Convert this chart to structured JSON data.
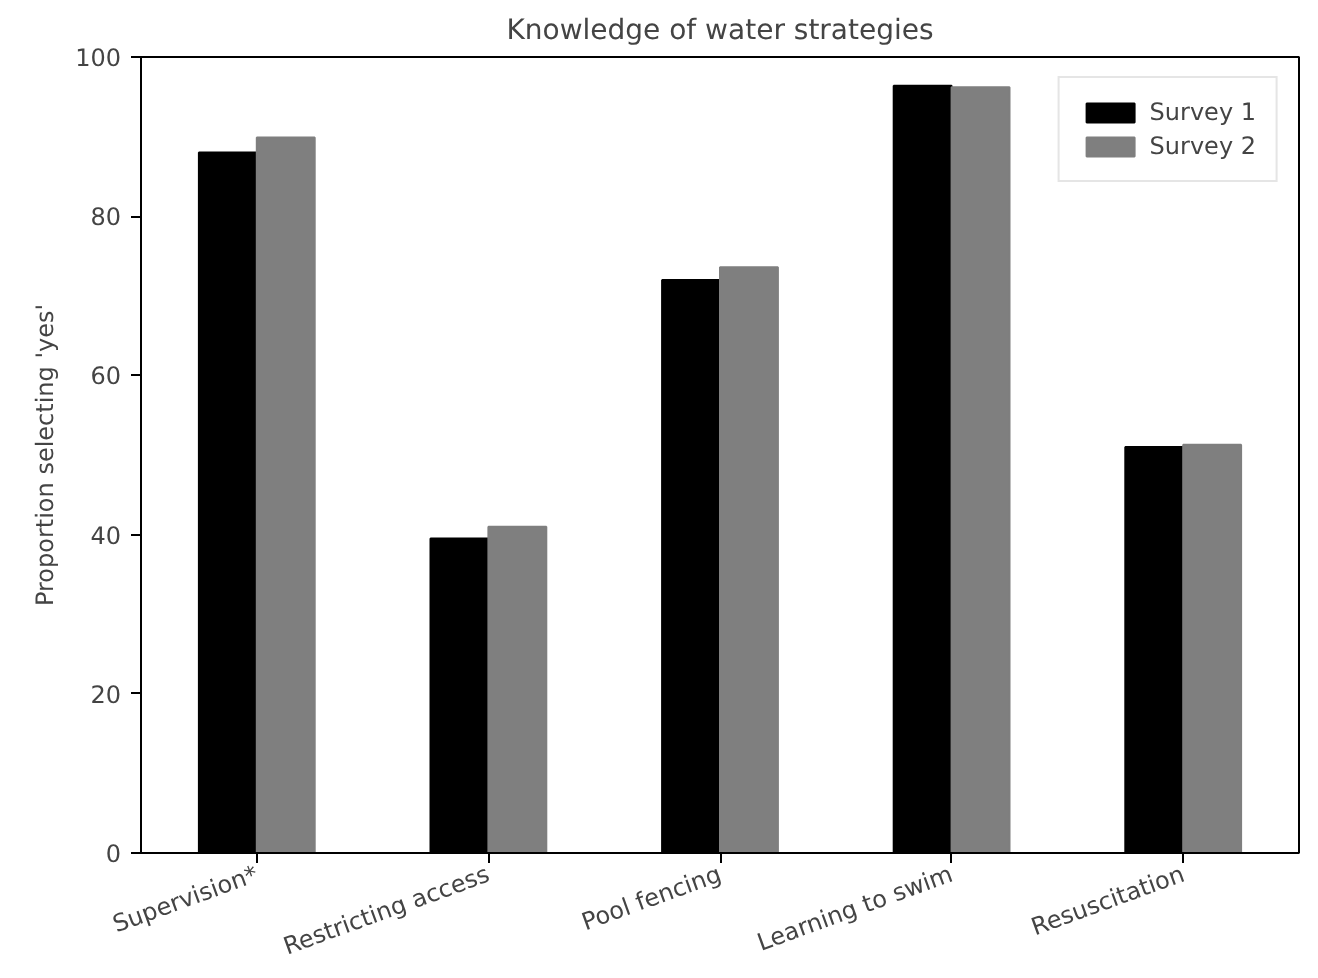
{
  "chart_data": {
    "type": "bar",
    "title": "Knowledge of water strategies",
    "ylabel": "Proportion selecting 'yes'",
    "categories": [
      "Supervision*",
      "Restricting access",
      "Pool fencing",
      "Learning to swim",
      "Resuscitation"
    ],
    "series": [
      {
        "name": "Survey 1",
        "color": "#000000",
        "values": [
          88.0,
          39.5,
          72.0,
          96.4,
          51.0
        ]
      },
      {
        "name": "Survey 2",
        "color": "#7f7f7f",
        "values": [
          89.9,
          41.0,
          73.6,
          96.2,
          51.3
        ]
      }
    ],
    "ylim": [
      0,
      100
    ],
    "yticks": [
      0,
      20,
      40,
      60,
      80,
      100
    ],
    "grid": false,
    "legend": "top right"
  }
}
